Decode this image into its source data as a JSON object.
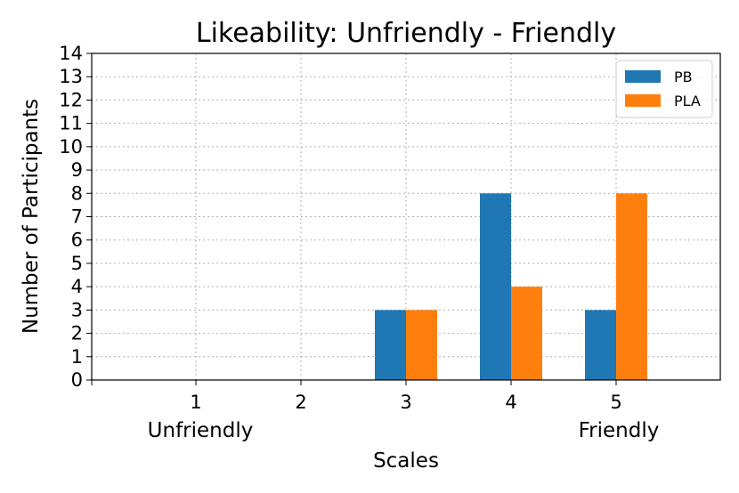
{
  "chart_data": {
    "type": "bar",
    "title": "Likeability:  Unfriendly - Friendly",
    "xlabel": "Scales",
    "ylabel": "Number of Participants",
    "categories": [
      "1",
      "2",
      "3",
      "4",
      "5"
    ],
    "category_anchor_labels": {
      "low": "Unfriendly",
      "high": "Friendly"
    },
    "series": [
      {
        "name": "PB",
        "color": "#1f77b4",
        "values": [
          0,
          0,
          3,
          8,
          3
        ]
      },
      {
        "name": "PLA",
        "color": "#ff7f0e",
        "values": [
          0,
          0,
          3,
          4,
          8
        ]
      }
    ],
    "ylim": [
      0,
      14
    ],
    "yticks": [
      0,
      1,
      2,
      3,
      4,
      5,
      6,
      7,
      8,
      9,
      10,
      11,
      12,
      13,
      14
    ],
    "grid": true,
    "legend_position": "top-right"
  }
}
